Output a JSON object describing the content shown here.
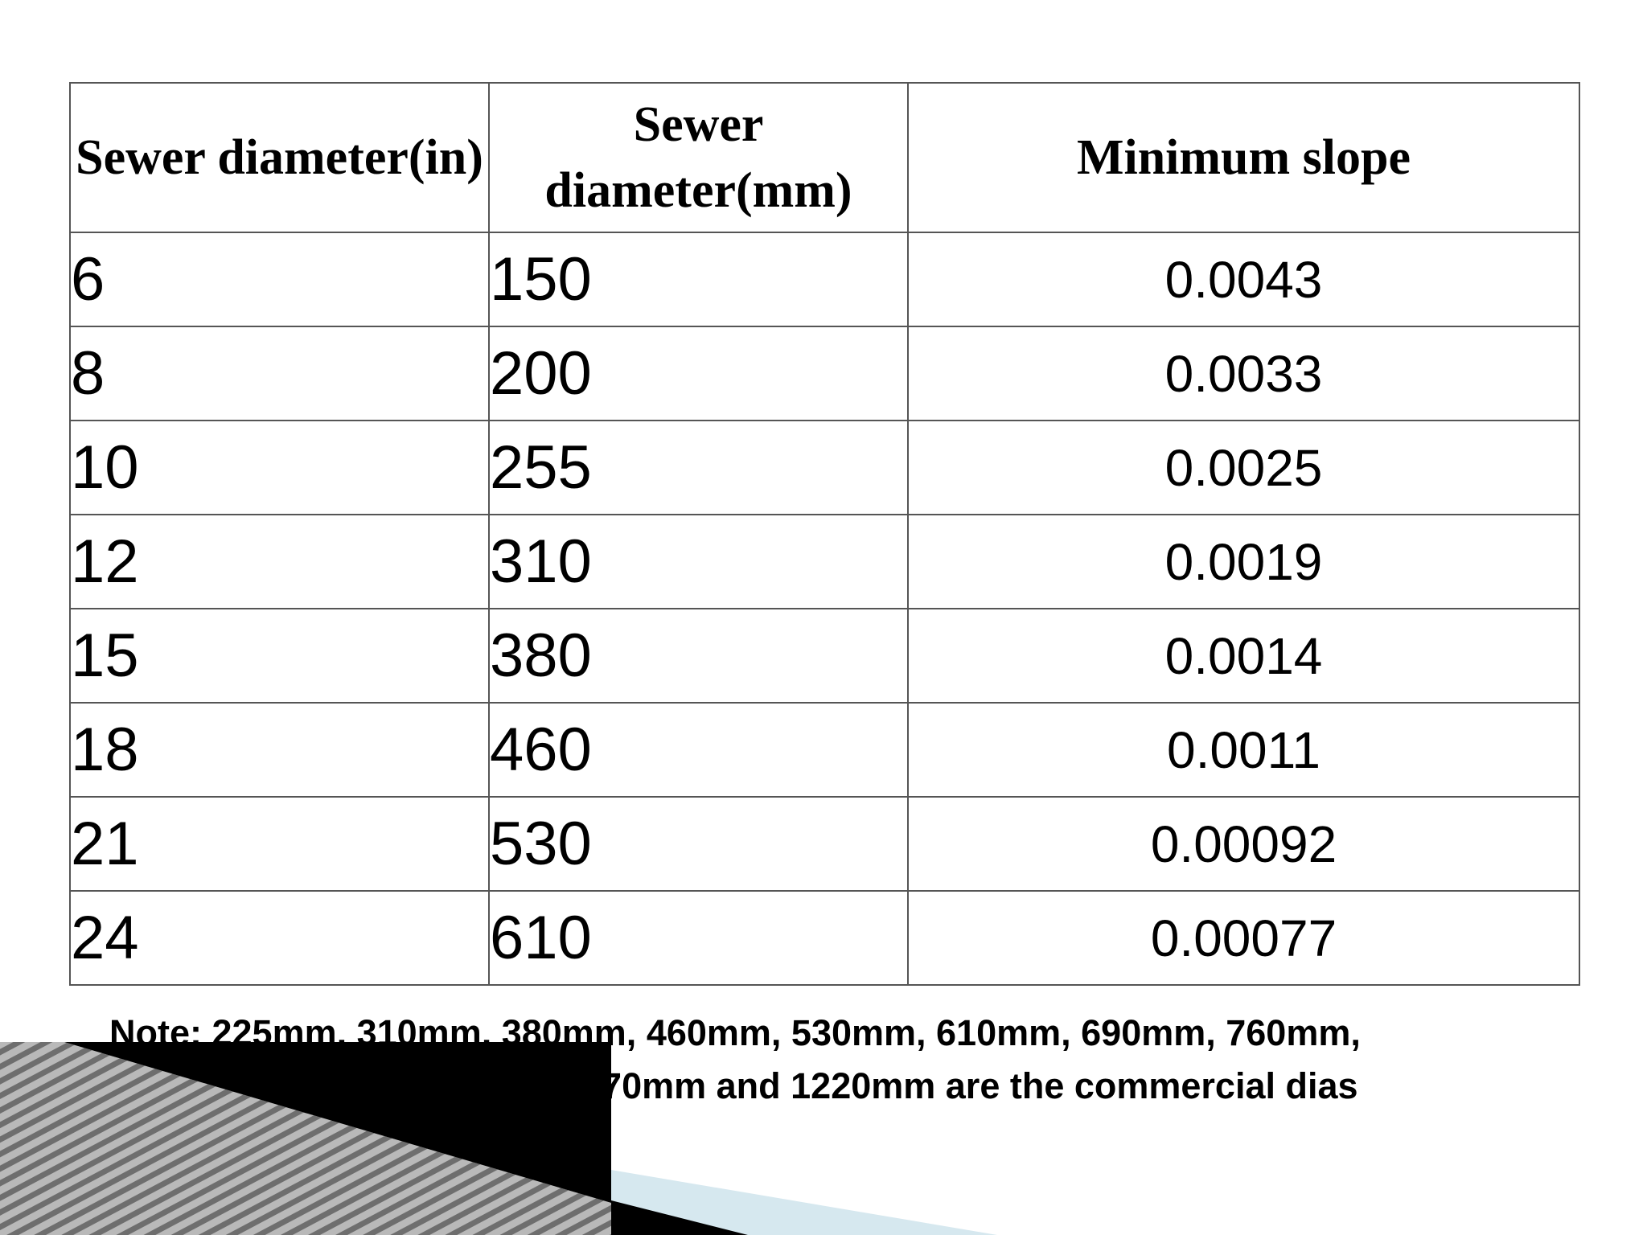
{
  "table": {
    "headers": [
      "Sewer diameter(in)",
      "Sewer diameter(mm)",
      "Minimum slope"
    ],
    "rows": [
      {
        "in": "6",
        "mm": "150",
        "slope": "0.0043"
      },
      {
        "in": "8",
        "mm": "200",
        "slope": "0.0033"
      },
      {
        "in": "10",
        "mm": "255",
        "slope": "0.0025"
      },
      {
        "in": "12",
        "mm": "310",
        "slope": "0.0019"
      },
      {
        "in": "15",
        "mm": "380",
        "slope": "0.0014"
      },
      {
        "in": "18",
        "mm": "460",
        "slope": "0.0011"
      },
      {
        "in": "21",
        "mm": "530",
        "slope": "0.00092"
      },
      {
        "in": "24",
        "mm": "610",
        "slope": "0.00077"
      }
    ]
  },
  "note": {
    "line1": "Note: 225mm, 310mm, 380mm, 460mm, 530mm, 610mm, 690mm, 760mm,",
    "line2": "1070mm and 1220mm are the commercial dias"
  },
  "colors": {
    "border": "#555555",
    "stripe_dark": "#6e6e6e",
    "stripe_light": "#b9b9b9",
    "light_blue": "#d6e8ef",
    "overlay": "#000000"
  }
}
